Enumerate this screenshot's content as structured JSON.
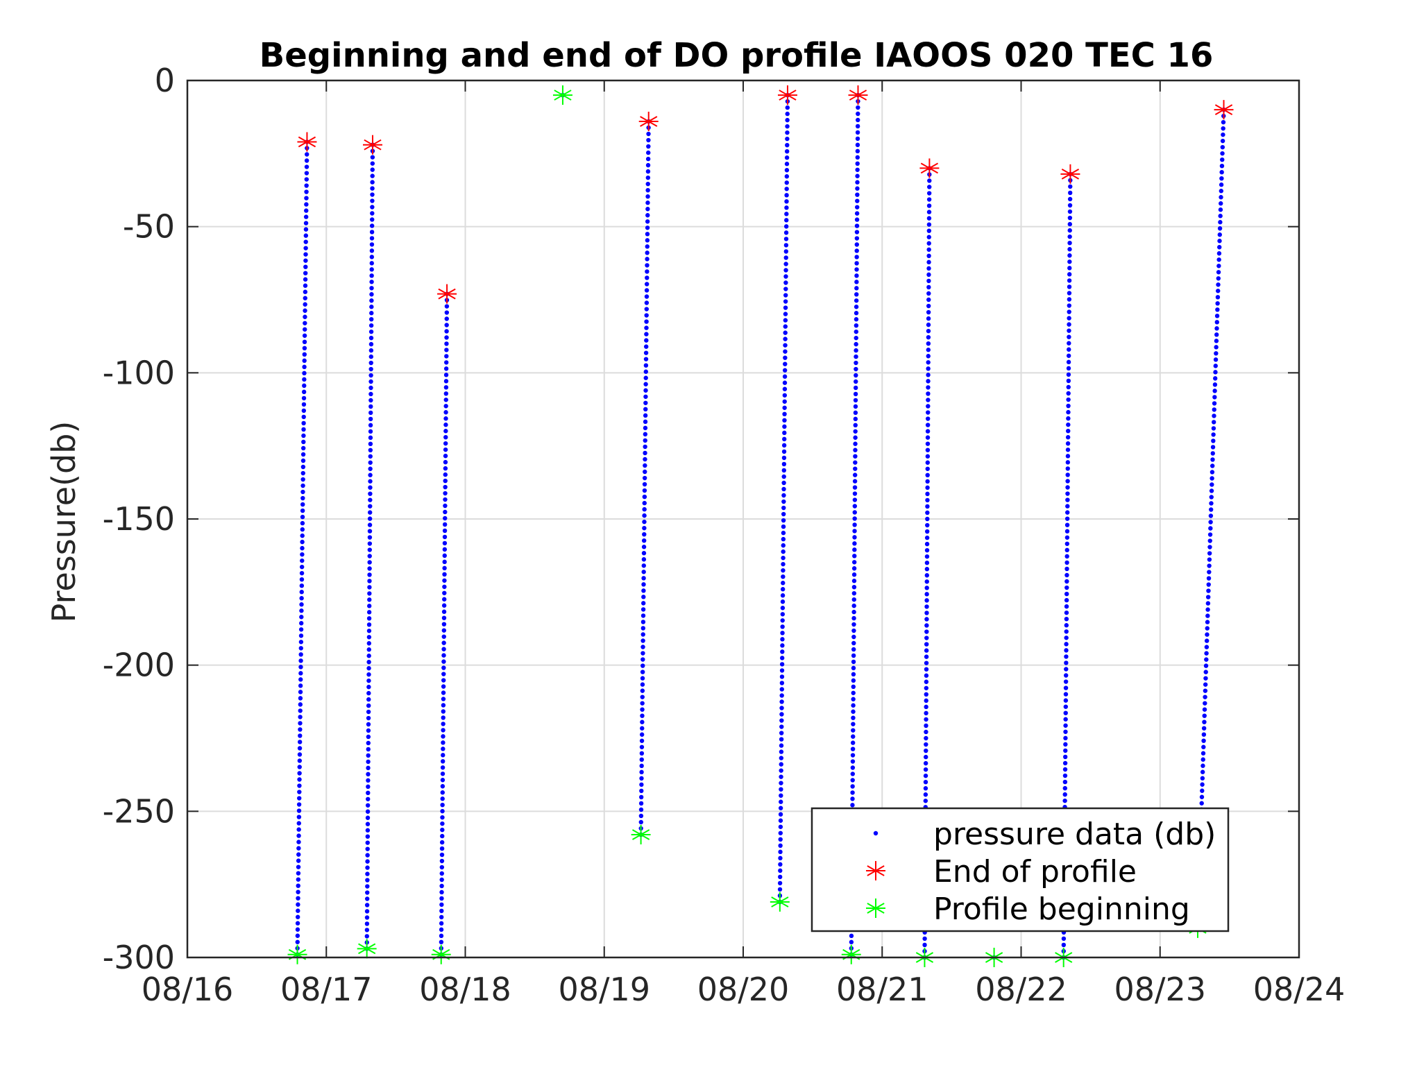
{
  "chart_data": {
    "type": "scatter",
    "title": "Beginning and end of DO profile IAOOS 020 TEC 16",
    "xlabel": "",
    "ylabel": "Pressure(db)",
    "x_ticks": [
      "08/16",
      "08/17",
      "08/18",
      "08/19",
      "08/20",
      "08/21",
      "08/22",
      "08/23",
      "08/24"
    ],
    "y_ticks": [
      "0",
      "-50",
      "-100",
      "-150",
      "-200",
      "-250",
      "-300"
    ],
    "xlim": [
      "08/16 00:00",
      "08/24 00:00"
    ],
    "ylim": [
      -300,
      0
    ],
    "grid": true,
    "legend_position": "bottom-right",
    "colors": {
      "data": "#0000ff",
      "end": "#ff0000",
      "begin": "#00ff00"
    },
    "series": [
      {
        "name": "pressure data (db)",
        "marker": "dot",
        "color": "#0000ff"
      },
      {
        "name": "End of profile",
        "marker": "asterisk",
        "color": "#ff0000"
      },
      {
        "name": "Profile beginning",
        "marker": "asterisk",
        "color": "#00ff00"
      }
    ],
    "profiles": [
      {
        "begin": {
          "x": "08/16 19:00",
          "y": -299
        },
        "end": {
          "x": "08/16 20:40",
          "y": -21
        }
      },
      {
        "begin": {
          "x": "08/17 07:00",
          "y": -297
        },
        "end": {
          "x": "08/17 08:00",
          "y": -22
        }
      },
      {
        "begin": {
          "x": "08/17 19:50",
          "y": -299
        },
        "end": {
          "x": "08/17 20:50",
          "y": -73
        }
      },
      {
        "begin": {
          "x": "08/18 16:50",
          "y": -5
        },
        "end": null
      },
      {
        "begin": {
          "x": "08/19 06:20",
          "y": -258
        },
        "end": {
          "x": "08/19 07:40",
          "y": -14
        }
      },
      {
        "begin": {
          "x": "08/20 06:20",
          "y": -281
        },
        "end": {
          "x": "08/20 07:40",
          "y": -5
        }
      },
      {
        "begin": {
          "x": "08/20 18:40",
          "y": -299
        },
        "end": {
          "x": "08/20 19:50",
          "y": -5
        }
      },
      {
        "begin": {
          "x": "08/21 07:20",
          "y": -300
        },
        "end": {
          "x": "08/21 08:10",
          "y": -30
        }
      },
      {
        "begin": {
          "x": "08/21 19:20",
          "y": -300
        },
        "end": null
      },
      {
        "begin": {
          "x": "08/22 07:20",
          "y": -300
        },
        "end": {
          "x": "08/22 08:30",
          "y": -32
        }
      },
      {
        "begin": {
          "x": "08/23 06:30",
          "y": -290
        },
        "end": {
          "x": "08/23 11:00",
          "y": -10
        }
      }
    ]
  }
}
